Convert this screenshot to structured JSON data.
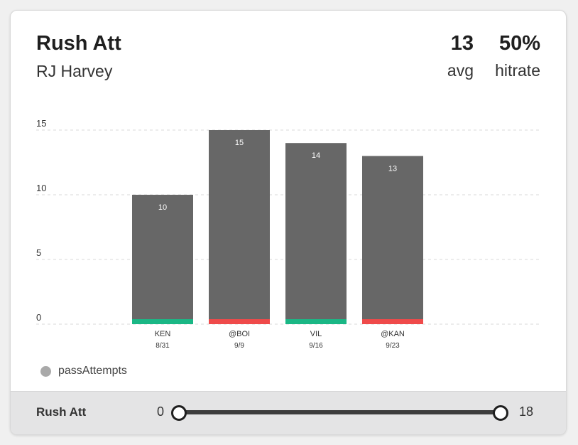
{
  "header": {
    "title": "Rush Att",
    "player": "RJ Harvey",
    "avg_value": "13",
    "avg_label": "avg",
    "hitrate_value": "50%",
    "hitrate_label": "hitrate"
  },
  "legend": {
    "label": "passAttempts",
    "color": "#a9a9a9"
  },
  "colors": {
    "bar": "#676767",
    "hit": "#1ab785",
    "miss": "#ef4a4a",
    "grid": "#d9d9d9"
  },
  "chart_data": {
    "type": "bar",
    "categories": [
      "KEN",
      "@BOI",
      "VIL",
      "@KAN"
    ],
    "dates": [
      "8/31",
      "9/9",
      "9/16",
      "9/23"
    ],
    "values": [
      10,
      15,
      14,
      13
    ],
    "result": [
      "hit",
      "miss",
      "hit",
      "miss"
    ],
    "ylim": [
      0,
      15
    ],
    "yticks": [
      0,
      5,
      10,
      15
    ],
    "grid": true
  },
  "footer": {
    "label": "Rush Att",
    "min": "0",
    "max": "18"
  }
}
